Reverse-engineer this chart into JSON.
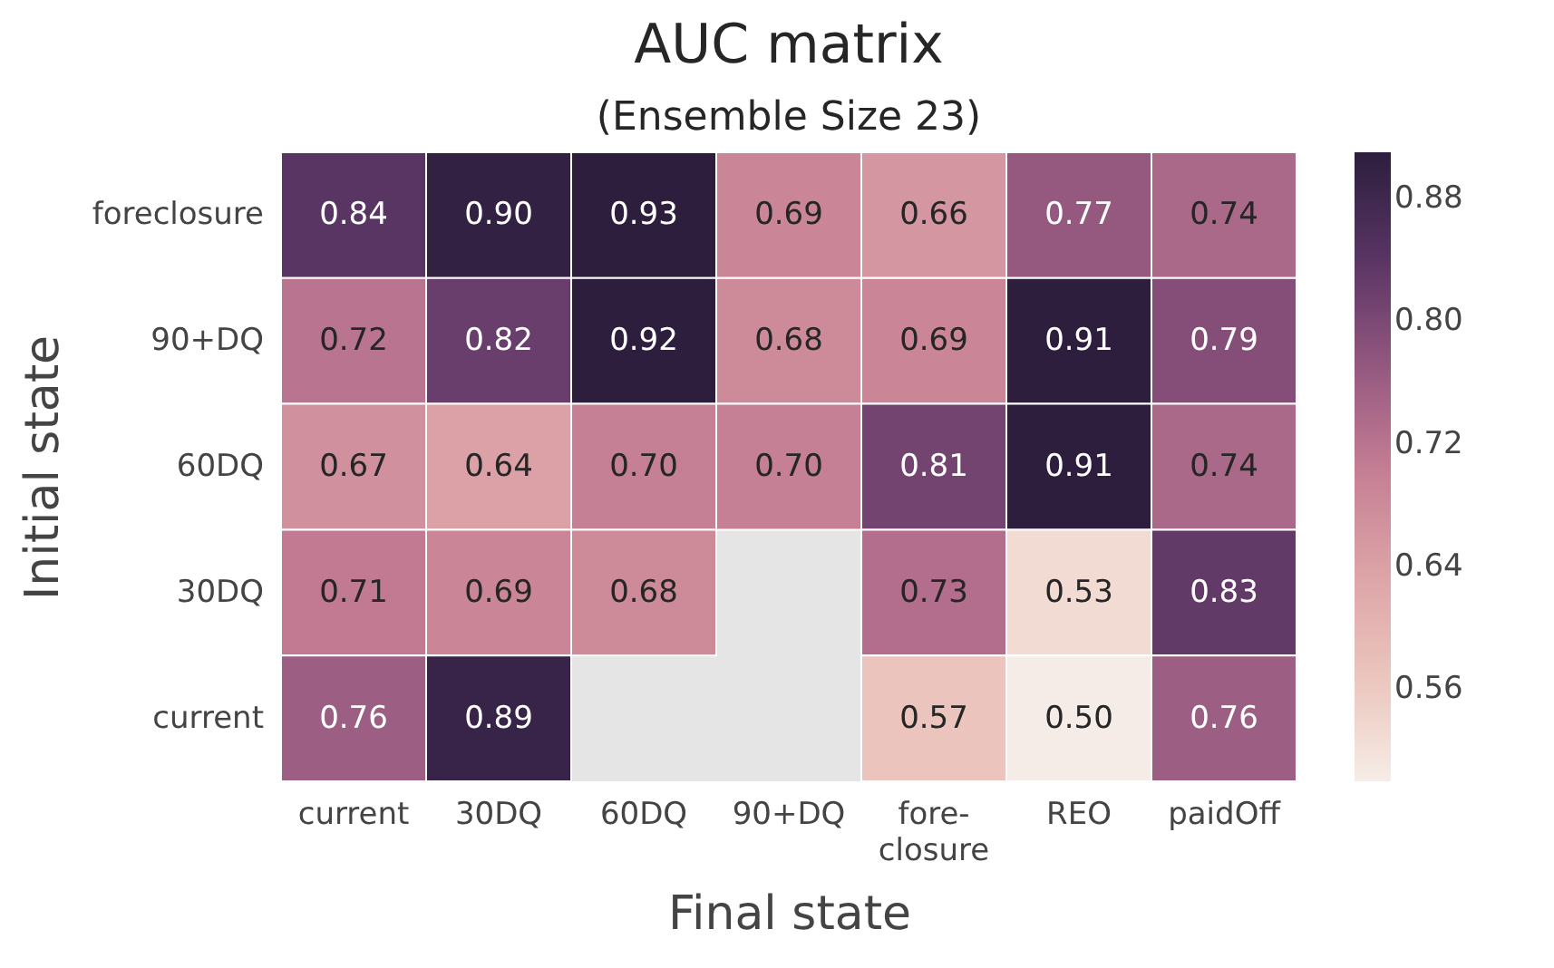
{
  "chart_data": {
    "type": "heatmap",
    "title": "AUC matrix",
    "subtitle": "(Ensemble Size 23)",
    "xlabel": "Final state",
    "ylabel": "Initial state",
    "categories": [
      "current",
      "30DQ",
      "60DQ",
      "90+DQ",
      "fore-\nclosure",
      "REO",
      "paidOff"
    ],
    "y_categories": [
      "foreclosure",
      "90+DQ",
      "60DQ",
      "30DQ",
      "current"
    ],
    "cells": [
      [
        0.84,
        0.9,
        0.93,
        0.69,
        0.66,
        0.77,
        0.74
      ],
      [
        0.72,
        0.82,
        0.92,
        0.68,
        0.69,
        0.91,
        0.79
      ],
      [
        0.67,
        0.64,
        0.7,
        0.7,
        0.81,
        0.91,
        0.74
      ],
      [
        0.71,
        0.69,
        0.68,
        null,
        0.73,
        0.53,
        0.83
      ],
      [
        0.76,
        0.89,
        null,
        null,
        0.57,
        0.5,
        0.76
      ]
    ],
    "cell_labels": [
      [
        "0.84",
        "0.90",
        "0.93",
        "0.69",
        "0.66",
        "0.77",
        "0.74"
      ],
      [
        "0.72",
        "0.82",
        "0.92",
        "0.68",
        "0.69",
        "0.91",
        "0.79"
      ],
      [
        "0.67",
        "0.64",
        "0.70",
        "0.70",
        "0.81",
        "0.91",
        "0.74"
      ],
      [
        "0.71",
        "0.69",
        "0.68",
        null,
        "0.73",
        "0.53",
        "0.83"
      ],
      [
        "0.76",
        "0.89",
        null,
        null,
        "0.57",
        "0.50",
        "0.76"
      ]
    ],
    "clim": [
      0.5,
      0.91
    ],
    "cticks": [
      0.56,
      0.64,
      0.72,
      {
        "value": 0.8,
        "label": "0.80"
      },
      0.88
    ]
  }
}
